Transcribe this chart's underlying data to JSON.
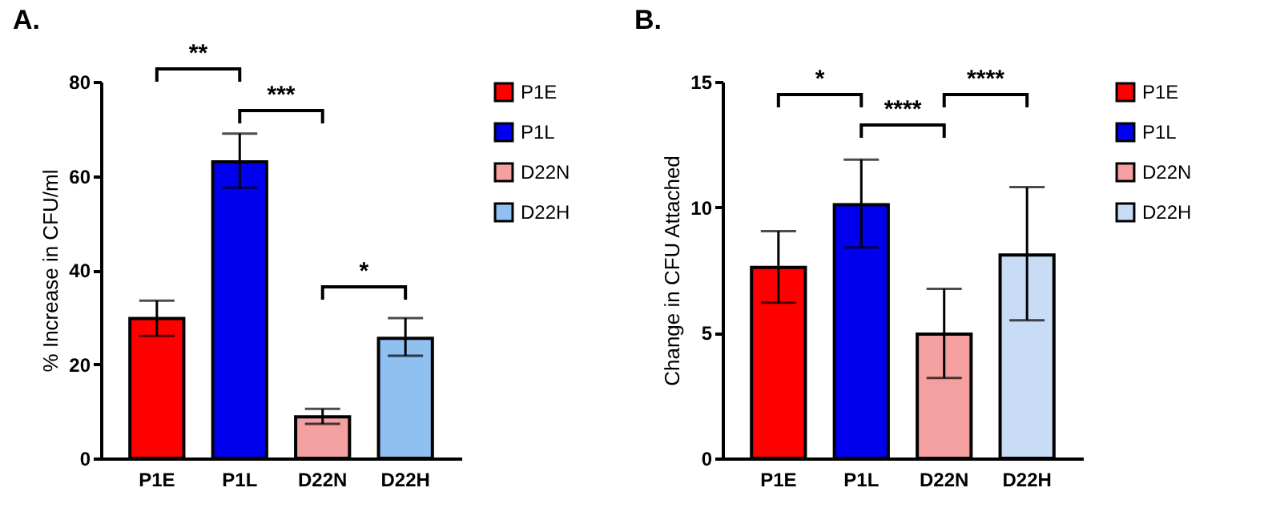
{
  "chart_data": [
    {
      "type": "bar",
      "title": "A.",
      "ylabel": "% Increase in CFU/ml",
      "categories": [
        "P1E",
        "P1L",
        "D22N",
        "D22H"
      ],
      "series": [
        {
          "name": "P1E",
          "color": "#ff0000",
          "values": [
            29.7,
            null,
            null,
            null
          ],
          "errors": [
            [
              26,
              33.5
            ],
            null,
            null,
            null
          ]
        },
        {
          "name": "P1L",
          "color": "#0000ee",
          "values": [
            null,
            63,
            null,
            null
          ],
          "errors": [
            null,
            [
              57.5,
              69
            ],
            null,
            null
          ]
        },
        {
          "name": "D22N",
          "color": "#f4a0a0",
          "values": [
            null,
            null,
            8.8,
            null
          ],
          "errors": [
            null,
            null,
            [
              7.3,
              10.5
            ],
            null
          ]
        },
        {
          "name": "D22H",
          "color": "#90c0f0",
          "values": [
            null,
            null,
            null,
            25.5
          ],
          "errors": [
            null,
            null,
            null,
            [
              21.8,
              29.8
            ]
          ]
        }
      ],
      "ylim": [
        0,
        80
      ],
      "yticks": [
        0,
        20,
        40,
        60,
        80
      ],
      "grid": false,
      "legend": "top right",
      "annotations": [
        "**",
        "***",
        "*"
      ]
    },
    {
      "type": "bar",
      "title": "B.",
      "ylabel": "Change in CFU Attached",
      "categories": [
        "P1E",
        "P1L",
        "D22N",
        "D22H"
      ],
      "series": [
        {
          "name": "P1E",
          "color": "#ff0000",
          "values": [
            7.6,
            null,
            null,
            null
          ],
          "errors": [
            [
              6.2,
              9.05
            ],
            null,
            null,
            null
          ]
        },
        {
          "name": "P1L",
          "color": "#0000ee",
          "values": [
            null,
            10.1,
            null,
            null
          ],
          "errors": [
            null,
            [
              8.4,
              11.9
            ],
            null,
            null
          ]
        },
        {
          "name": "D22N",
          "color": "#f4a0a0",
          "values": [
            null,
            null,
            4.95,
            null
          ],
          "errors": [
            null,
            null,
            [
              3.2,
              6.75
            ],
            null
          ]
        },
        {
          "name": "D22H",
          "color": "#c8dcf5",
          "values": [
            null,
            null,
            null,
            8.1
          ],
          "errors": [
            null,
            null,
            null,
            [
              5.5,
              10.8
            ]
          ]
        }
      ],
      "ylim": [
        0,
        15
      ],
      "yticks": [
        0,
        5,
        10,
        15
      ],
      "grid": false,
      "legend": "top right",
      "annotations": [
        "*",
        "****",
        "****"
      ]
    }
  ]
}
